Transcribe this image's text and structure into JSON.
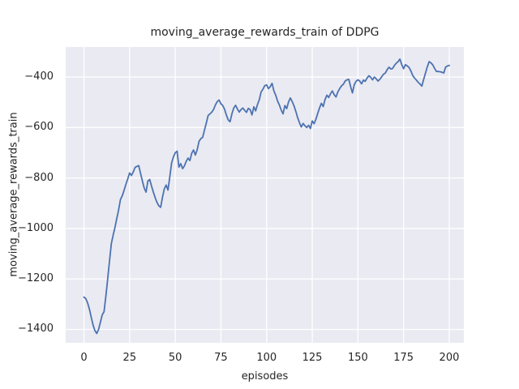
{
  "chart_data": {
    "type": "line",
    "title": "moving_average_rewards_train of DDPG",
    "xlabel": "episodes",
    "ylabel": "moving_average_rewards_train",
    "x_ticks": [
      0,
      25,
      50,
      75,
      100,
      125,
      150,
      175,
      200
    ],
    "x_tick_labels": [
      "0",
      "25",
      "50",
      "75",
      "100",
      "125",
      "150",
      "175",
      "200"
    ],
    "y_ticks": [
      -400,
      -600,
      -800,
      -1000,
      -1200,
      -1400
    ],
    "y_tick_labels": [
      "−400",
      "−600",
      "−800",
      "−1000",
      "−1200",
      "−1400"
    ],
    "xlim": [
      -10,
      208
    ],
    "ylim": [
      -1453,
      -281
    ],
    "grid": true,
    "legend": "none",
    "style": {
      "figure_bg": "#ffffff",
      "axes_bg": "#eaeaf2",
      "grid_color": "#ffffff",
      "text_color": "#262626",
      "line_color": "#4c72b0"
    },
    "series": [
      {
        "name": "moving_average_rewards_train",
        "color": "#4c72b0",
        "x_start": 0,
        "x_step": 1,
        "values": [
          -1272,
          -1278,
          -1295,
          -1320,
          -1352,
          -1383,
          -1405,
          -1416,
          -1400,
          -1372,
          -1342,
          -1330,
          -1268,
          -1200,
          -1128,
          -1060,
          -1026,
          -995,
          -960,
          -925,
          -885,
          -870,
          -848,
          -824,
          -803,
          -780,
          -790,
          -776,
          -758,
          -754,
          -751,
          -782,
          -812,
          -840,
          -856,
          -812,
          -806,
          -832,
          -856,
          -878,
          -897,
          -910,
          -916,
          -876,
          -843,
          -828,
          -848,
          -795,
          -740,
          -716,
          -700,
          -694,
          -757,
          -743,
          -763,
          -752,
          -734,
          -721,
          -731,
          -702,
          -689,
          -709,
          -688,
          -655,
          -644,
          -639,
          -610,
          -582,
          -552,
          -546,
          -539,
          -528,
          -510,
          -497,
          -491,
          -506,
          -513,
          -528,
          -551,
          -570,
          -577,
          -546,
          -523,
          -512,
          -526,
          -539,
          -529,
          -523,
          -532,
          -540,
          -524,
          -529,
          -550,
          -518,
          -534,
          -509,
          -490,
          -459,
          -448,
          -434,
          -431,
          -446,
          -438,
          -425,
          -455,
          -472,
          -495,
          -511,
          -531,
          -546,
          -513,
          -525,
          -499,
          -483,
          -497,
          -514,
          -536,
          -561,
          -581,
          -598,
          -584,
          -593,
          -600,
          -591,
          -604,
          -574,
          -585,
          -567,
          -544,
          -522,
          -504,
          -517,
          -489,
          -472,
          -481,
          -466,
          -455,
          -470,
          -479,
          -459,
          -446,
          -435,
          -429,
          -416,
          -411,
          -409,
          -438,
          -463,
          -430,
          -417,
          -411,
          -416,
          -427,
          -412,
          -417,
          -404,
          -395,
          -401,
          -411,
          -400,
          -407,
          -416,
          -409,
          -399,
          -389,
          -384,
          -371,
          -361,
          -368,
          -366,
          -354,
          -345,
          -339,
          -329,
          -351,
          -367,
          -351,
          -356,
          -362,
          -376,
          -394,
          -404,
          -412,
          -421,
          -428,
          -436,
          -409,
          -384,
          -359,
          -339,
          -344,
          -352,
          -366,
          -378,
          -378,
          -379,
          -381,
          -384,
          -361,
          -356,
          -354
        ]
      }
    ]
  }
}
